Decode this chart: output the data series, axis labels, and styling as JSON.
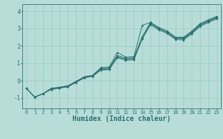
{
  "bg_color": "#b8ddd8",
  "grid_color": "#9eccc6",
  "line_color": "#2a7070",
  "xlabel": "Humidex (Indice chaleur)",
  "xlim": [
    -0.5,
    23.5
  ],
  "ylim": [
    -1.6,
    4.4
  ],
  "yticks": [
    -1,
    0,
    1,
    2,
    3,
    4
  ],
  "xticks": [
    0,
    1,
    2,
    3,
    4,
    5,
    6,
    7,
    8,
    9,
    10,
    11,
    12,
    13,
    14,
    15,
    16,
    17,
    18,
    19,
    20,
    21,
    22,
    23
  ],
  "lines": [
    {
      "x": [
        0,
        1,
        2,
        3,
        4,
        5,
        6,
        7,
        8,
        9,
        10,
        11,
        12,
        13,
        14,
        15,
        16,
        17,
        18,
        19,
        20,
        21,
        22,
        23
      ],
      "y": [
        -0.45,
        -0.95,
        -0.75,
        -0.45,
        -0.38,
        -0.3,
        -0.05,
        0.22,
        0.3,
        0.75,
        0.78,
        1.62,
        1.35,
        1.38,
        3.18,
        3.35,
        3.05,
        2.85,
        2.5,
        2.5,
        2.85,
        3.28,
        3.5,
        3.7
      ]
    },
    {
      "x": [
        0,
        1,
        2,
        3,
        4,
        5,
        6,
        7,
        8,
        9,
        10,
        11,
        12,
        13,
        14,
        15,
        16,
        17,
        18,
        19,
        20,
        21,
        22,
        23
      ],
      "y": [
        -0.45,
        -0.95,
        -0.75,
        -0.45,
        -0.38,
        -0.3,
        -0.05,
        0.22,
        0.3,
        0.7,
        0.73,
        1.45,
        1.28,
        1.32,
        2.52,
        3.35,
        3.05,
        2.85,
        2.5,
        2.45,
        2.8,
        3.23,
        3.45,
        3.65
      ]
    },
    {
      "x": [
        0,
        1,
        2,
        3,
        4,
        5,
        6,
        7,
        8,
        9,
        10,
        11,
        12,
        13,
        14,
        15,
        16,
        17,
        18,
        19,
        20,
        21,
        22,
        23
      ],
      "y": [
        -0.45,
        -0.95,
        -0.75,
        -0.5,
        -0.43,
        -0.35,
        -0.1,
        0.17,
        0.25,
        0.65,
        0.68,
        1.38,
        1.22,
        1.26,
        2.46,
        3.28,
        2.98,
        2.78,
        2.44,
        2.4,
        2.75,
        3.18,
        3.4,
        3.6
      ]
    },
    {
      "x": [
        0,
        1,
        2,
        3,
        4,
        5,
        6,
        7,
        8,
        9,
        10,
        11,
        12,
        13,
        14,
        15,
        16,
        17,
        18,
        19,
        20,
        21,
        22,
        23
      ],
      "y": [
        -0.45,
        -0.95,
        -0.75,
        -0.5,
        -0.43,
        -0.35,
        -0.1,
        0.17,
        0.25,
        0.6,
        0.63,
        1.32,
        1.17,
        1.2,
        2.4,
        3.22,
        2.92,
        2.72,
        2.38,
        2.34,
        2.7,
        3.12,
        3.35,
        3.55
      ]
    }
  ],
  "xlabel_fontsize": 7,
  "ytick_fontsize": 6,
  "xtick_fontsize": 5
}
